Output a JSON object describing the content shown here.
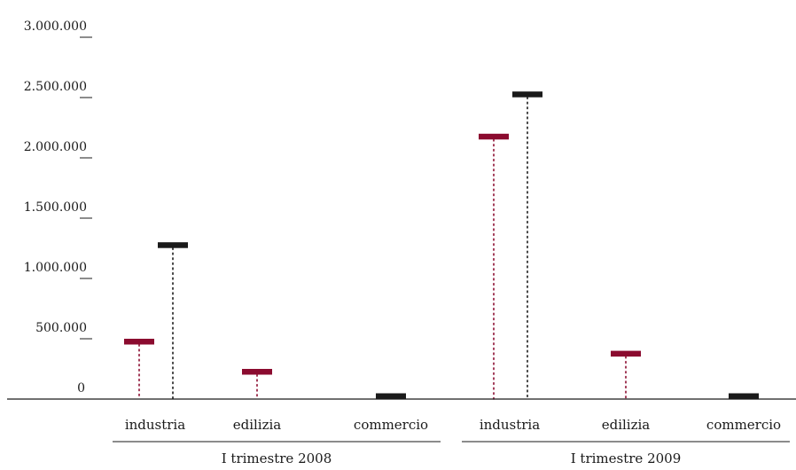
{
  "chart_data": {
    "type": "bar",
    "title": "",
    "xlabel": "",
    "ylabel": "",
    "ylim": [
      0,
      3000000
    ],
    "y_ticks": [
      {
        "value": 0,
        "label": "0"
      },
      {
        "value": 500000,
        "label": "500.000"
      },
      {
        "value": 1000000,
        "label": "1.000.000"
      },
      {
        "value": 1500000,
        "label": "1.500.000"
      },
      {
        "value": 2000000,
        "label": "2.000.000"
      },
      {
        "value": 2500000,
        "label": "2.500.000"
      },
      {
        "value": 3000000,
        "label": "3.000.000"
      }
    ],
    "groups": [
      {
        "label": "I trimestre 2008",
        "categories": [
          "industria",
          "edilizia",
          "commercio"
        ]
      },
      {
        "label": "I trimestre 2009",
        "categories": [
          "industria",
          "edilizia",
          "commercio"
        ]
      }
    ],
    "series": [
      {
        "color": "#8b0b2f",
        "values": [
          [
            500000,
            250000,
            null
          ],
          [
            2200000,
            400000,
            null
          ]
        ]
      },
      {
        "color": "#1a1a1a",
        "values": [
          [
            1300000,
            null,
            30000
          ],
          [
            2550000,
            null,
            30000
          ]
        ]
      }
    ],
    "grid": false,
    "legend": "none"
  }
}
